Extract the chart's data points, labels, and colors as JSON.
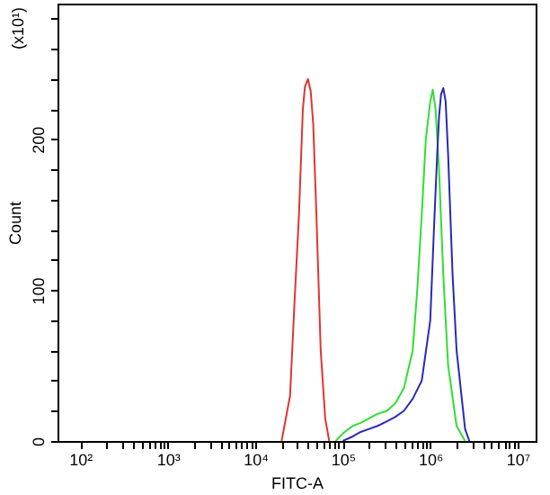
{
  "chart_data": {
    "type": "line",
    "xlabel": "FITC-A",
    "ylabel": "Count",
    "annotations": [
      "(x10¹)"
    ],
    "log": "x",
    "grid": false,
    "legend": false,
    "marker": "none",
    "line_style": "solid",
    "xlim": [
      55,
      16000000
    ],
    "ylim": [
      0,
      290
    ],
    "xticks": [
      {
        "value": 100,
        "label": "10²"
      },
      {
        "value": 200,
        "label": null
      },
      {
        "value": 300,
        "label": null
      },
      {
        "value": 400,
        "label": null
      },
      {
        "value": 500,
        "label": null
      },
      {
        "value": 600,
        "label": null
      },
      {
        "value": 700,
        "label": null
      },
      {
        "value": 800,
        "label": null
      },
      {
        "value": 900,
        "label": null
      },
      {
        "value": 1000,
        "label": "10³"
      },
      {
        "value": 2000,
        "label": null
      },
      {
        "value": 3000,
        "label": null
      },
      {
        "value": 4000,
        "label": null
      },
      {
        "value": 5000,
        "label": null
      },
      {
        "value": 6000,
        "label": null
      },
      {
        "value": 7000,
        "label": null
      },
      {
        "value": 8000,
        "label": null
      },
      {
        "value": 9000,
        "label": null
      },
      {
        "value": 10000,
        "label": "10⁴"
      },
      {
        "value": 20000,
        "label": null
      },
      {
        "value": 30000,
        "label": null
      },
      {
        "value": 40000,
        "label": null
      },
      {
        "value": 50000,
        "label": null
      },
      {
        "value": 60000,
        "label": null
      },
      {
        "value": 70000,
        "label": null
      },
      {
        "value": 80000,
        "label": null
      },
      {
        "value": 90000,
        "label": null
      },
      {
        "value": 100000,
        "label": "10⁵"
      },
      {
        "value": 200000,
        "label": null
      },
      {
        "value": 300000,
        "label": null
      },
      {
        "value": 400000,
        "label": null
      },
      {
        "value": 500000,
        "label": null
      },
      {
        "value": 600000,
        "label": null
      },
      {
        "value": 700000,
        "label": null
      },
      {
        "value": 800000,
        "label": null
      },
      {
        "value": 900000,
        "label": null
      },
      {
        "value": 1000000,
        "label": "10⁶"
      },
      {
        "value": 2000000,
        "label": null
      },
      {
        "value": 3000000,
        "label": null
      },
      {
        "value": 4000000,
        "label": null
      },
      {
        "value": 5000000,
        "label": null
      },
      {
        "value": 6000000,
        "label": null
      },
      {
        "value": 7000000,
        "label": null
      },
      {
        "value": 8000000,
        "label": null
      },
      {
        "value": 9000000,
        "label": null
      },
      {
        "value": 10000000,
        "label": "10⁷"
      }
    ],
    "yticks": [
      0,
      {
        "value": 20,
        "label": null
      },
      {
        "value": 40,
        "label": null
      },
      {
        "value": 60,
        "label": null
      },
      {
        "value": 80,
        "label": null
      },
      100,
      {
        "value": 120,
        "label": null
      },
      {
        "value": 140,
        "label": null
      },
      {
        "value": 160,
        "label": null
      },
      {
        "value": 180,
        "label": null
      },
      200,
      {
        "value": 220,
        "label": null
      },
      {
        "value": 240,
        "label": null
      },
      {
        "value": 260,
        "label": null
      },
      {
        "value": 280,
        "label": null
      }
    ],
    "series": [
      {
        "color": "#e03535",
        "x": [
          20000,
          25000,
          28000,
          31600,
          35000,
          37000,
          40000,
          43000,
          46000,
          50000,
          56000,
          63000,
          70000
        ],
        "values": [
          0,
          30,
          90,
          150,
          220,
          235,
          240,
          232,
          210,
          150,
          60,
          15,
          0
        ]
      },
      {
        "color": "#33dd33",
        "x": [
          83000,
          100000,
          130000,
          160000,
          200000,
          250000,
          320000,
          400000,
          500000,
          630000,
          710000,
          800000,
          890000,
          1000000,
          1070000,
          1150000,
          1260000,
          1410000,
          1600000,
          2000000,
          2500000
        ],
        "values": [
          0,
          5,
          10,
          12,
          15,
          18,
          20,
          25,
          35,
          60,
          100,
          150,
          200,
          225,
          233,
          220,
          180,
          110,
          50,
          10,
          0
        ]
      },
      {
        "color": "#2a2ab5",
        "x": [
          100000,
          130000,
          160000,
          200000,
          250000,
          320000,
          400000,
          500000,
          630000,
          800000,
          1000000,
          1120000,
          1200000,
          1260000,
          1330000,
          1410000,
          1500000,
          1600000,
          1800000,
          2000000,
          2500000,
          2800000
        ],
        "values": [
          0,
          3,
          6,
          8,
          10,
          13,
          16,
          20,
          28,
          40,
          80,
          150,
          190,
          215,
          230,
          234,
          225,
          190,
          110,
          60,
          8,
          0
        ]
      }
    ]
  }
}
